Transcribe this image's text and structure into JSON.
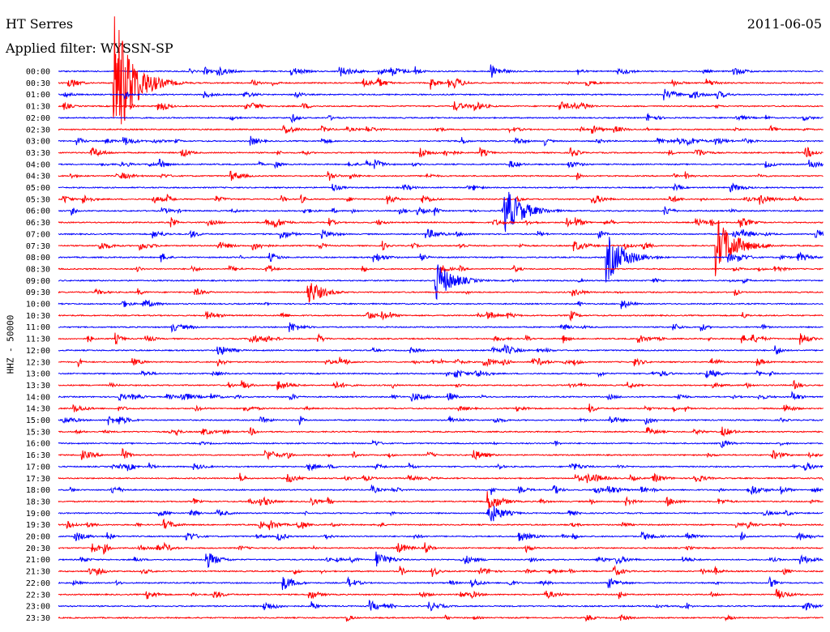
{
  "header": {
    "station": "HT Serres",
    "date": "2011-06-05",
    "filter": "Applied filter: WYSSN-SP"
  },
  "axis": {
    "ylabel": "HHZ - 50000"
  },
  "colors": {
    "even_trace": "#0000ff",
    "odd_trace": "#ff0000",
    "background": "#ffffff"
  },
  "chart_data": {
    "type": "line",
    "chart_kind": "helicorder",
    "row_labels": [
      "00:00",
      "00:30",
      "01:00",
      "01:30",
      "02:00",
      "02:30",
      "03:00",
      "03:30",
      "04:00",
      "04:30",
      "05:00",
      "05:30",
      "06:00",
      "06:30",
      "07:00",
      "07:30",
      "08:00",
      "08:30",
      "09:00",
      "09:30",
      "10:00",
      "10:30",
      "11:00",
      "11:30",
      "12:00",
      "12:30",
      "13:00",
      "13:30",
      "14:00",
      "14:30",
      "15:00",
      "15:30",
      "16:00",
      "16:30",
      "17:00",
      "17:30",
      "18:00",
      "18:30",
      "19:00",
      "19:30",
      "20:00",
      "20:30",
      "21:00",
      "21:30",
      "22:00",
      "22:30",
      "23:00",
      "23:30"
    ],
    "row_duration_minutes": 30,
    "major_events": [
      {
        "row": 0,
        "minute": 17,
        "amplitude": 0.6
      },
      {
        "row": 1,
        "minute": 2.2,
        "amplitude": 6.5
      },
      {
        "row": 12,
        "minute": 17.5,
        "amplitude": 2.2
      },
      {
        "row": 16,
        "minute": 21.5,
        "amplitude": 2.2
      },
      {
        "row": 15,
        "minute": 25.8,
        "amplitude": 2.6
      },
      {
        "row": 18,
        "minute": 14.8,
        "amplitude": 1.8
      },
      {
        "row": 19,
        "minute": 9.8,
        "amplitude": 1.2
      },
      {
        "row": 37,
        "minute": 16.8,
        "amplitude": 1.0
      },
      {
        "row": 38,
        "minute": 16.9,
        "amplitude": 1.0
      },
      {
        "row": 42,
        "minute": 5.8,
        "amplitude": 0.8
      },
      {
        "row": 42,
        "minute": 12.5,
        "amplitude": 0.8
      },
      {
        "row": 44,
        "minute": 8.8,
        "amplitude": 0.7
      },
      {
        "row": 43,
        "minute": 1.5,
        "amplitude": 0.35
      }
    ]
  }
}
